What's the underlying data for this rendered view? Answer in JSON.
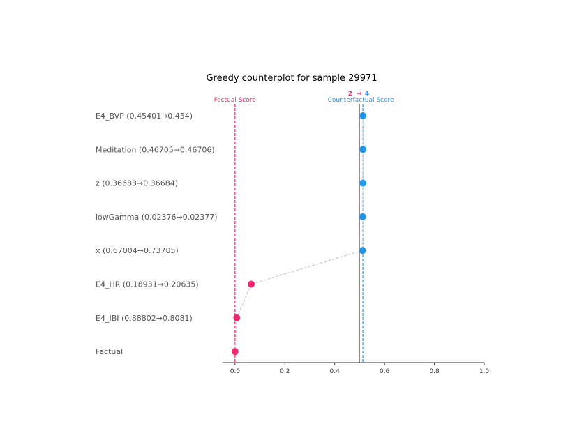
{
  "chart_data": {
    "type": "scatter",
    "title": "Greedy counterplot for sample 29971",
    "xlim": [
      -0.05,
      1.0
    ],
    "xticks": [
      0.0,
      0.2,
      0.4,
      0.6,
      0.8,
      1.0
    ],
    "xtick_labels": [
      "0.0",
      "0.2",
      "0.4",
      "0.6",
      "0.8",
      "1.0"
    ],
    "threshold": 0.5,
    "factual_score": 0.0,
    "counterfactual_score": 0.513,
    "factual_score_label": "Factual Score",
    "counterfactual_score_label": "Counterfactual Score",
    "factual_class": "2",
    "class_arrow": "→",
    "counterfactual_class": "4",
    "rows": [
      {
        "label": "E4_BVP (0.45401→0.454)",
        "score": 0.513,
        "cf": true
      },
      {
        "label": "Meditation (0.46705→0.46706)",
        "score": 0.513,
        "cf": true
      },
      {
        "label": "z (0.36683→0.36684)",
        "score": 0.513,
        "cf": true
      },
      {
        "label": "lowGamma (0.02376→0.02377)",
        "score": 0.512,
        "cf": true
      },
      {
        "label": "x (0.67004→0.73705)",
        "score": 0.512,
        "cf": true
      },
      {
        "label": "E4_HR (0.18931→0.20635)",
        "score": 0.065,
        "cf": false
      },
      {
        "label": "E4_IBI (0.88802→0.8081)",
        "score": 0.007,
        "cf": false
      },
      {
        "label": "Factual",
        "score": 0.0,
        "cf": false
      }
    ]
  },
  "colors": {
    "factual": "#f0266e",
    "counterfactual": "#2196e8",
    "threshold": "#cc6677",
    "path": "#c8c8c8",
    "axis": "#333333",
    "label": "#555555"
  }
}
